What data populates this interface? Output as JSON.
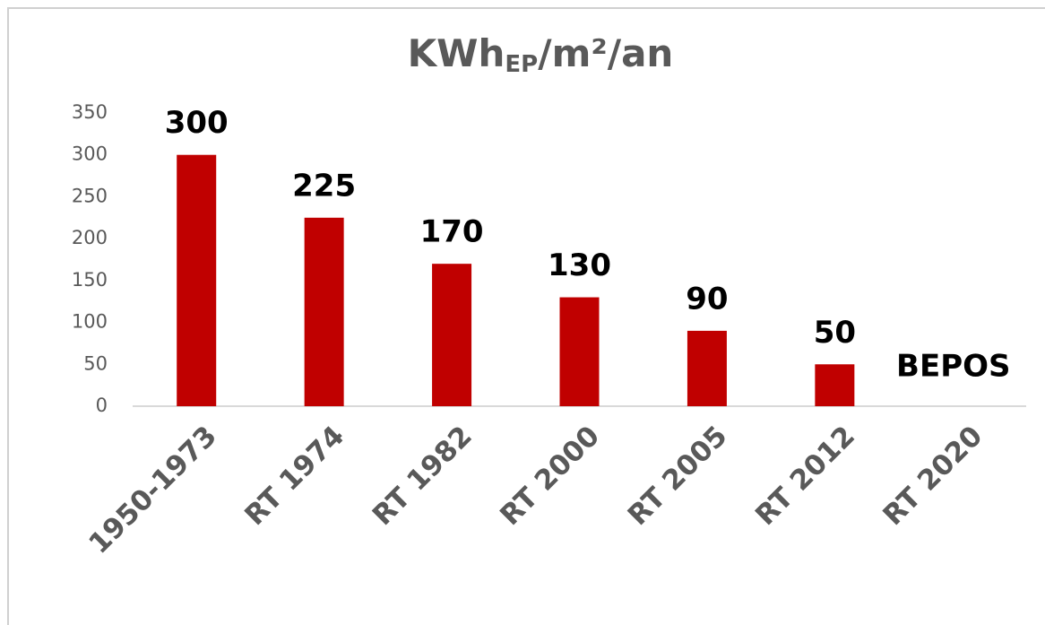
{
  "chart_data": {
    "type": "bar",
    "title": {
      "main": "KWh",
      "subscript": "EP",
      "rest": "/m²/an"
    },
    "categories": [
      "1950-1973",
      "RT 1974",
      "RT 1982",
      "RT 2000",
      "RT 2005",
      "RT 2012",
      "RT 2020"
    ],
    "values": [
      300,
      225,
      170,
      130,
      90,
      50,
      null
    ],
    "annotation": "BEPOS",
    "color": "#c00000",
    "ylim": [
      0,
      350
    ],
    "yticks": [
      0,
      50,
      100,
      150,
      200,
      250,
      300,
      350
    ],
    "grid": false
  }
}
